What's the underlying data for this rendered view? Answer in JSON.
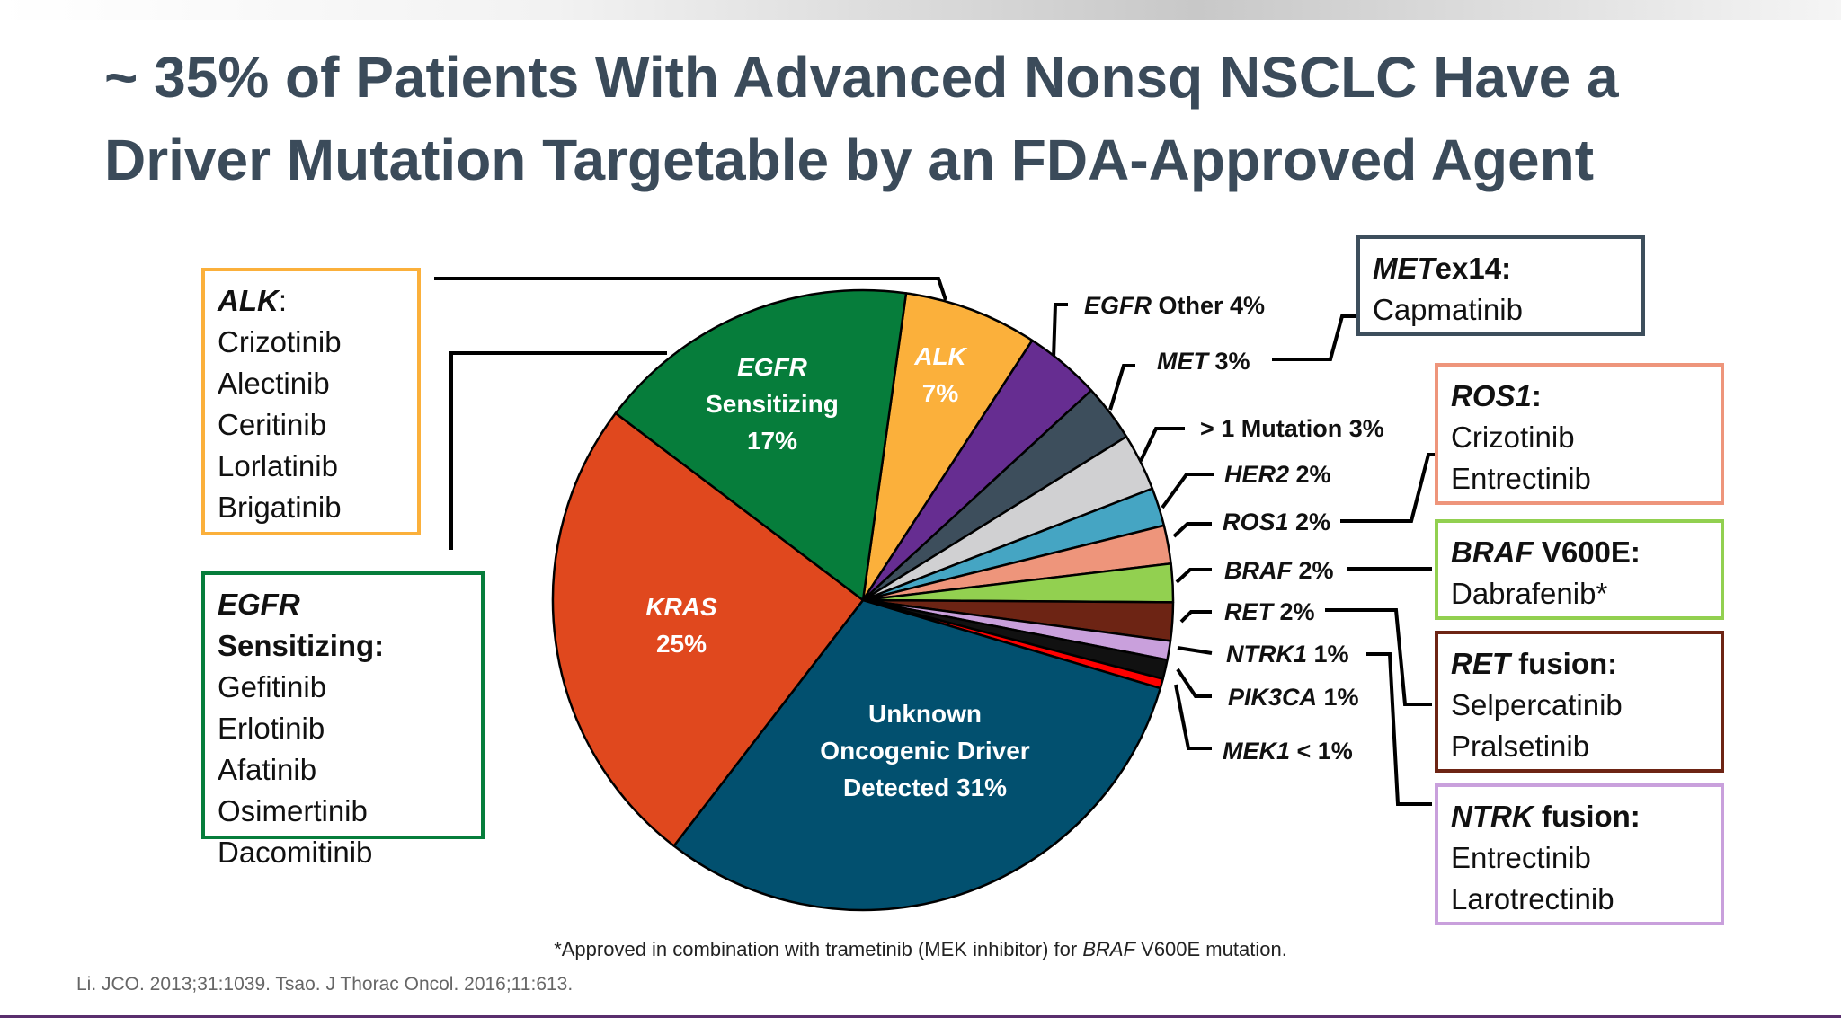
{
  "slide": {
    "title_line1": "~ 35% of Patients With Advanced Nonsq NSCLC Have a",
    "title_line2": "Driver Mutation Targetable by an FDA-Approved Agent",
    "footnote_prefix": "*Approved in combination with trametinib (MEK inhibitor) for ",
    "footnote_gene": "BRAF",
    "footnote_suffix": " V600E mutation.",
    "reference": "Li. JCO. 2013;31:1039. Tsao. J Thorac Oncol. 2016;11:613."
  },
  "chart_data": {
    "type": "pie",
    "slices": [
      {
        "label": "ALK",
        "value": 7,
        "color": "#fbb03b"
      },
      {
        "label": "EGFR Other",
        "value": 4,
        "color": "#662d91"
      },
      {
        "label": "MET",
        "value": 3,
        "color": "#3d4e5c"
      },
      {
        "label": "> 1 Mutation",
        "value": 3,
        "color": "#d0d0d2"
      },
      {
        "label": "HER2",
        "value": 2,
        "color": "#45a5c3"
      },
      {
        "label": "ROS1",
        "value": 2,
        "color": "#ee957b"
      },
      {
        "label": "BRAF",
        "value": 2,
        "color": "#92d050"
      },
      {
        "label": "RET",
        "value": 2,
        "color": "#6d2414"
      },
      {
        "label": "NTRK1",
        "value": 1,
        "color": "#c9a0dc"
      },
      {
        "label": "PIK3CA",
        "value": 1,
        "color": "#111111"
      },
      {
        "label": "MEK1",
        "value": 0.5,
        "color": "#ff0000"
      },
      {
        "label": "Unknown Oncogenic Driver Detected",
        "value": 31,
        "color": "#02506f"
      },
      {
        "label": "KRAS",
        "value": 25,
        "color": "#e0481e"
      },
      {
        "label": "EGFR Sensitizing",
        "value": 17,
        "color": "#067d3b"
      }
    ],
    "inside_labels": [
      {
        "lines": [
          "ALK",
          "7%"
        ],
        "italic_first": true
      },
      {
        "lines": [
          "EGFR",
          "Sensitizing",
          "17%"
        ],
        "italic_first": true
      },
      {
        "lines": [
          "KRAS",
          "25%"
        ],
        "italic_first": true
      },
      {
        "lines": [
          "Unknown",
          "Oncogenic Driver",
          "Detected 31%"
        ],
        "italic_first": false
      }
    ],
    "outside_labels": [
      {
        "gene": "EGFR",
        "rest": " Other 4%",
        "italic": true
      },
      {
        "gene": "MET",
        "rest": " 3%",
        "italic": true
      },
      {
        "gene": "> 1 Mutation 3%",
        "rest": "",
        "italic": false
      },
      {
        "gene": "HER2",
        "rest": " 2%",
        "italic": true
      },
      {
        "gene": "ROS1",
        "rest": " 2%",
        "italic": true
      },
      {
        "gene": "BRAF",
        "rest": " 2%",
        "italic": true
      },
      {
        "gene": "RET",
        "rest": " 2%",
        "italic": true
      },
      {
        "gene": "NTRK1",
        "rest": " 1%",
        "italic": true
      },
      {
        "gene": "PIK3CA",
        "rest": " 1%",
        "italic": true
      },
      {
        "gene": "MEK1",
        "rest": " < 1%",
        "italic": true
      }
    ]
  },
  "therapy_boxes": {
    "alk": {
      "gene": "ALK",
      "suffix": ":",
      "drugs": [
        "Crizotinib",
        "Alectinib",
        "Ceritinib",
        "Lorlatinib",
        "Brigatinib"
      ],
      "color": "#fbb03b"
    },
    "egfr": {
      "gene": "EGFR",
      "suffix": " Sensitizing:",
      "drugs": [
        "Gefitinib",
        "Erlotinib",
        "Afatinib",
        "Osimertinib",
        "Dacomitinib"
      ],
      "color": "#067d3b"
    },
    "met": {
      "gene": "MET",
      "suffix": "ex14:",
      "drugs": [
        "Capmatinib"
      ],
      "color": "#3d4e5c"
    },
    "ros1": {
      "gene": "ROS1",
      "suffix": ":",
      "drugs": [
        "Crizotinib",
        "Entrectinib"
      ],
      "color": "#ee957b"
    },
    "braf": {
      "gene": "BRAF",
      "suffix": " V600E:",
      "drugs": [
        "Dabrafenib*"
      ],
      "color": "#92d050"
    },
    "ret": {
      "gene": "RET",
      "suffix": " fusion:",
      "drugs": [
        "Selpercatinib",
        "Pralsetinib"
      ],
      "color": "#6d2414"
    },
    "ntrk": {
      "gene": "NTRK",
      "suffix": " fusion:",
      "drugs": [
        "Entrectinib",
        "Larotrectinib"
      ],
      "color": "#c9a0dc"
    }
  }
}
